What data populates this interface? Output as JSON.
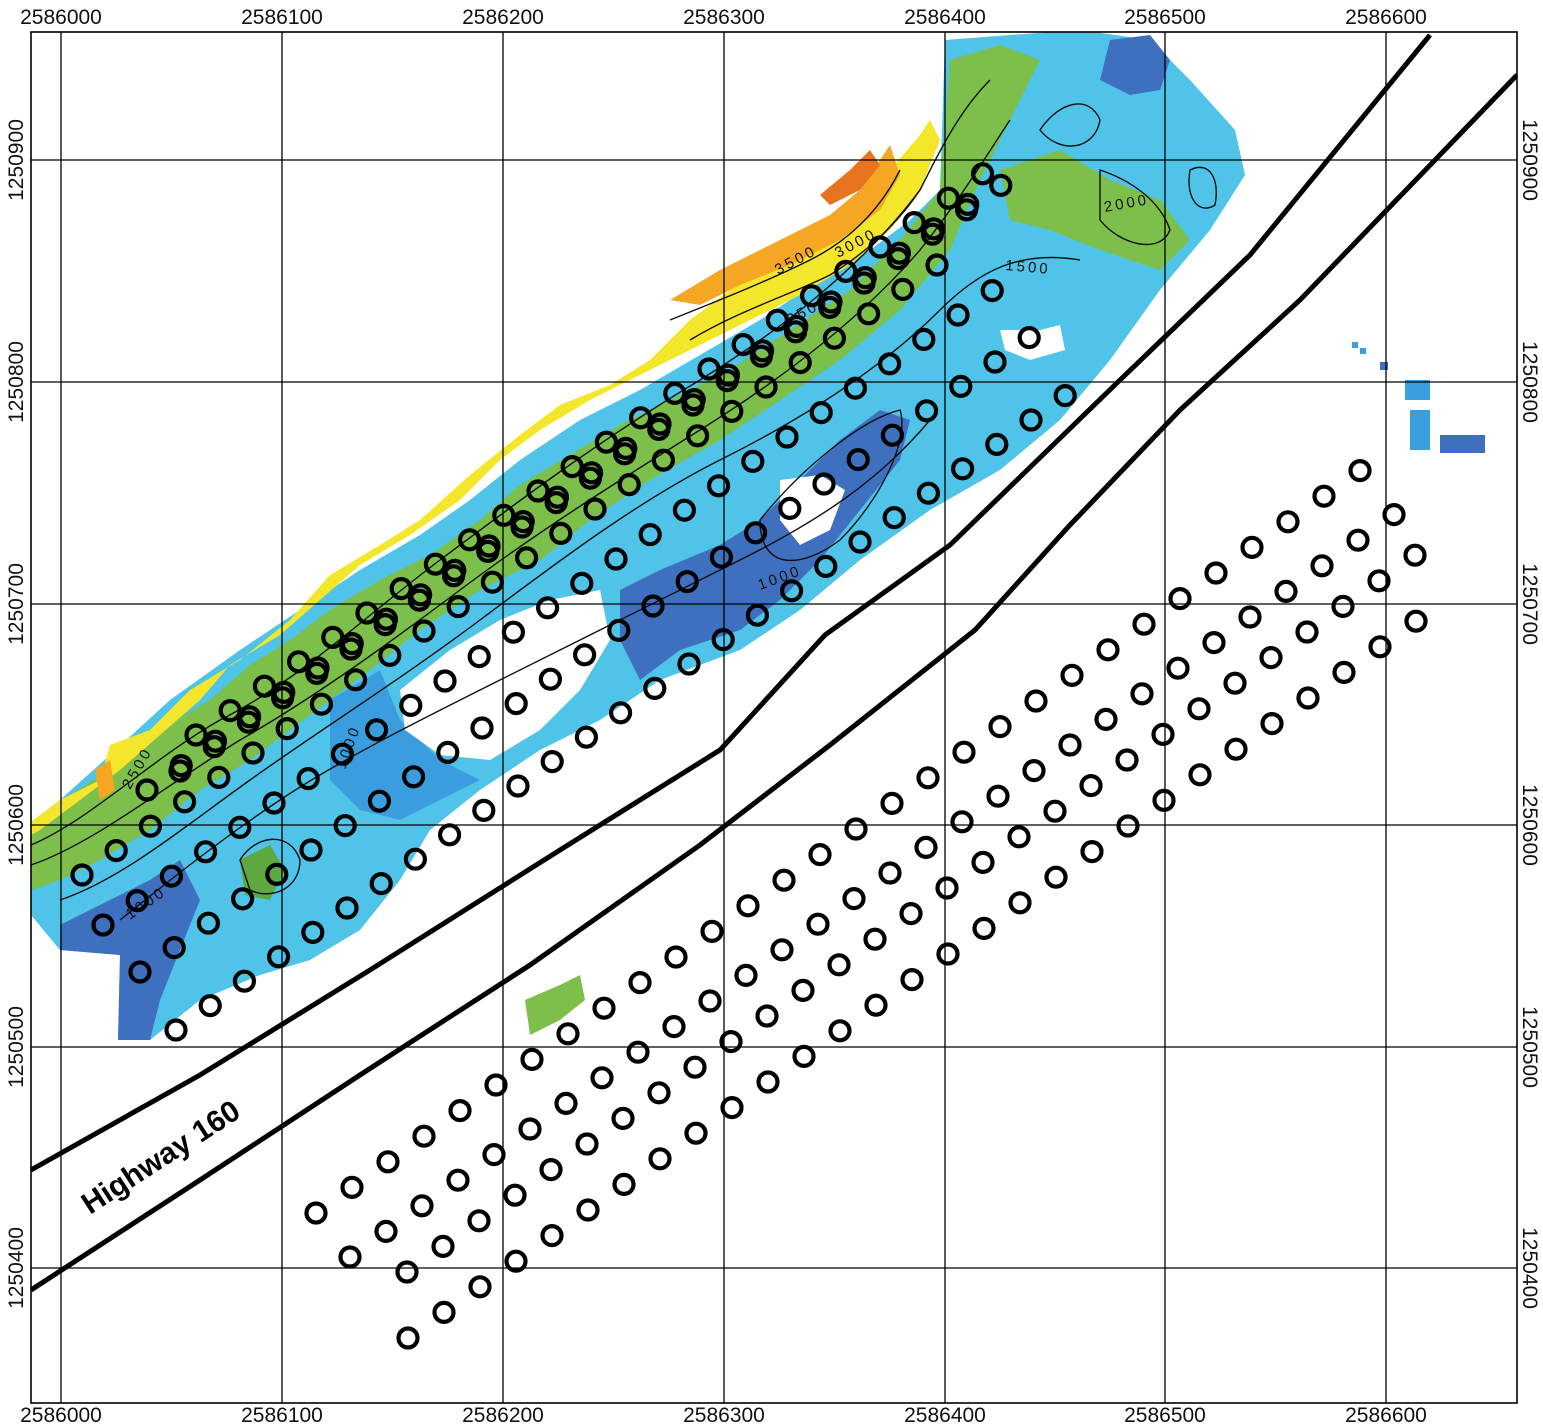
{
  "map": {
    "road_label": "Highway 160",
    "x_ticks": [
      "2586000",
      "2586100",
      "2586200",
      "2586300",
      "2586400",
      "2586500",
      "2586600"
    ],
    "y_ticks": [
      "1250900",
      "1250800",
      "1250700",
      "1250600",
      "1250500",
      "1250400"
    ],
    "contour_labels": [
      "1000",
      "1500",
      "2000",
      "2500",
      "3000",
      "3500"
    ],
    "colors": {
      "deep_blue": "#3f6fbf",
      "blue": "#3a9ede",
      "light_blue": "#4fc3e8",
      "teal": "#6cc6b8",
      "green": "#7cbf4a",
      "dark_green": "#5ea93f",
      "yellow_green": "#bcd640",
      "yellow": "#f4e62a",
      "orange": "#f5a623",
      "dark_orange": "#e8731e",
      "grid": "#000000"
    }
  }
}
